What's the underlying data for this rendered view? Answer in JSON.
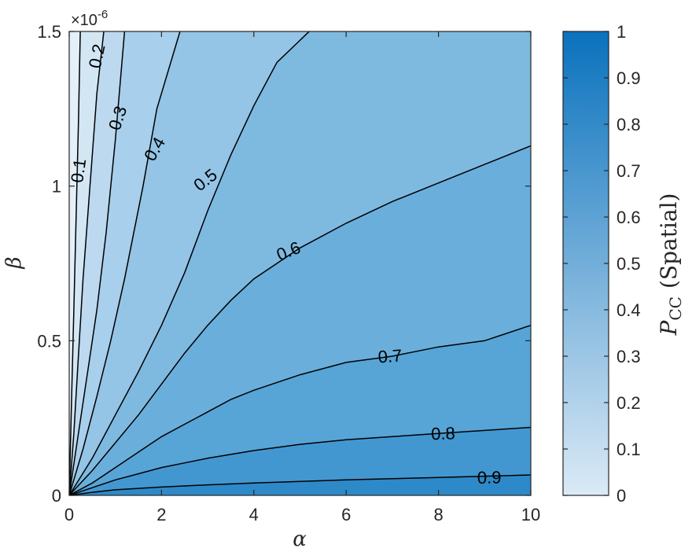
{
  "chart_data": {
    "type": "contour",
    "xlabel": "α",
    "ylabel": "β",
    "xlim": [
      0,
      10
    ],
    "ylim": [
      0,
      1.5
    ],
    "x_ticks": [
      "0",
      "2",
      "4",
      "6",
      "8",
      "10"
    ],
    "y_ticks": [
      "0",
      "0.5",
      "1",
      "1.5"
    ],
    "y_exponent_label": "×10",
    "y_exponent_power": "-6",
    "colorbar": {
      "label_main": "P",
      "label_sub": "CC",
      "label_rest": "(Spatial)",
      "range": [
        0,
        1
      ],
      "ticks": [
        "0",
        "0.1",
        "0.2",
        "0.3",
        "0.4",
        "0.5",
        "0.6",
        "0.7",
        "0.8",
        "0.9",
        "1"
      ],
      "color_low": "#dbeaf6",
      "color_high": "#0a72bd"
    },
    "levels": [
      {
        "level": 0.1,
        "label": "0.1",
        "fill": "#d3e6f4",
        "label_at": [
          0.2,
          1.05
        ],
        "label_angle": -82,
        "points": [
          [
            0,
            0
          ],
          [
            0.05,
            0.3
          ],
          [
            0.1,
            0.6
          ],
          [
            0.15,
            0.9
          ],
          [
            0.2,
            1.2
          ],
          [
            0.24,
            1.5
          ]
        ]
      },
      {
        "level": 0.2,
        "label": "0.2",
        "fill": "#bcd9ef",
        "label_at": [
          0.6,
          1.42
        ],
        "label_angle": -78,
        "points": [
          [
            0,
            0
          ],
          [
            0.1,
            0.2
          ],
          [
            0.2,
            0.45
          ],
          [
            0.3,
            0.7
          ],
          [
            0.45,
            1.0
          ],
          [
            0.6,
            1.3
          ],
          [
            0.75,
            1.5
          ]
        ]
      },
      {
        "level": 0.3,
        "label": "0.3",
        "fill": "#a8cfeb",
        "label_at": [
          1.05,
          1.22
        ],
        "label_angle": -72,
        "points": [
          [
            0,
            0
          ],
          [
            0.2,
            0.2
          ],
          [
            0.4,
            0.4
          ],
          [
            0.6,
            0.6
          ],
          [
            0.8,
            0.85
          ],
          [
            1.0,
            1.15
          ],
          [
            1.2,
            1.5
          ]
        ]
      },
      {
        "level": 0.4,
        "label": "0.4",
        "fill": "#94c4e6",
        "label_at": [
          1.85,
          1.12
        ],
        "label_angle": -60,
        "points": [
          [
            0,
            0
          ],
          [
            0.3,
            0.15
          ],
          [
            0.6,
            0.32
          ],
          [
            0.9,
            0.5
          ],
          [
            1.2,
            0.7
          ],
          [
            1.6,
            1.0
          ],
          [
            1.9,
            1.25
          ],
          [
            2.4,
            1.5
          ]
        ]
      },
      {
        "level": 0.5,
        "label": "0.5",
        "fill": "#7eb9e0",
        "label_at": [
          2.95,
          1.02
        ],
        "label_angle": -38,
        "points": [
          [
            0,
            0
          ],
          [
            0.5,
            0.12
          ],
          [
            1.0,
            0.26
          ],
          [
            1.5,
            0.4
          ],
          [
            2.0,
            0.55
          ],
          [
            2.5,
            0.72
          ],
          [
            3.0,
            0.92
          ],
          [
            3.5,
            1.1
          ],
          [
            4.0,
            1.26
          ],
          [
            4.5,
            1.4
          ],
          [
            5.2,
            1.5
          ]
        ]
      },
      {
        "level": 0.6,
        "label": "0.6",
        "fill": "#6aafdc",
        "label_at": [
          4.75,
          0.79
        ],
        "label_angle": -22,
        "points": [
          [
            0,
            0
          ],
          [
            0.5,
            0.08
          ],
          [
            1.0,
            0.17
          ],
          [
            1.5,
            0.26
          ],
          [
            2.0,
            0.36
          ],
          [
            2.5,
            0.46
          ],
          [
            3.0,
            0.55
          ],
          [
            3.5,
            0.63
          ],
          [
            4.0,
            0.7
          ],
          [
            5.0,
            0.8
          ],
          [
            6.0,
            0.88
          ],
          [
            7.0,
            0.95
          ],
          [
            8.0,
            1.01
          ],
          [
            9.0,
            1.07
          ],
          [
            10.0,
            1.13
          ]
        ]
      },
      {
        "level": 0.7,
        "label": "0.7",
        "fill": "#57a4d7",
        "label_at": [
          6.95,
          0.45
        ],
        "label_angle": -4,
        "points": [
          [
            0,
            0
          ],
          [
            0.5,
            0.04
          ],
          [
            1.0,
            0.09
          ],
          [
            1.5,
            0.14
          ],
          [
            2.0,
            0.19
          ],
          [
            2.5,
            0.23
          ],
          [
            3.0,
            0.27
          ],
          [
            3.5,
            0.31
          ],
          [
            4.0,
            0.34
          ],
          [
            5.0,
            0.39
          ],
          [
            6.0,
            0.43
          ],
          [
            7.0,
            0.45
          ],
          [
            8.0,
            0.48
          ],
          [
            9.0,
            0.5
          ],
          [
            10.0,
            0.55
          ]
        ]
      },
      {
        "level": 0.8,
        "label": "0.8",
        "fill": "#4397d1",
        "label_at": [
          8.1,
          0.2
        ],
        "label_angle": -2,
        "points": [
          [
            0,
            0
          ],
          [
            0.5,
            0.025
          ],
          [
            1.0,
            0.05
          ],
          [
            1.5,
            0.07
          ],
          [
            2.0,
            0.09
          ],
          [
            2.5,
            0.105
          ],
          [
            3.0,
            0.12
          ],
          [
            4.0,
            0.145
          ],
          [
            5.0,
            0.165
          ],
          [
            6.0,
            0.18
          ],
          [
            7.0,
            0.19
          ],
          [
            8.0,
            0.2
          ],
          [
            9.0,
            0.21
          ],
          [
            10.0,
            0.22
          ]
        ]
      },
      {
        "level": 0.9,
        "label": "0.9",
        "fill": "#2e89c8",
        "label_at": [
          9.1,
          0.058
        ],
        "label_angle": -1,
        "points": [
          [
            0,
            0
          ],
          [
            0.5,
            0.01
          ],
          [
            1.0,
            0.018
          ],
          [
            2.0,
            0.027
          ],
          [
            3.0,
            0.034
          ],
          [
            4.0,
            0.04
          ],
          [
            5.0,
            0.045
          ],
          [
            6.0,
            0.05
          ],
          [
            7.0,
            0.054
          ],
          [
            8.0,
            0.058
          ],
          [
            9.0,
            0.062
          ],
          [
            10.0,
            0.066
          ]
        ]
      }
    ],
    "region_fills": {
      "below_lowest": "#e4eff8",
      "above_highest": "#1c7dc2"
    }
  }
}
